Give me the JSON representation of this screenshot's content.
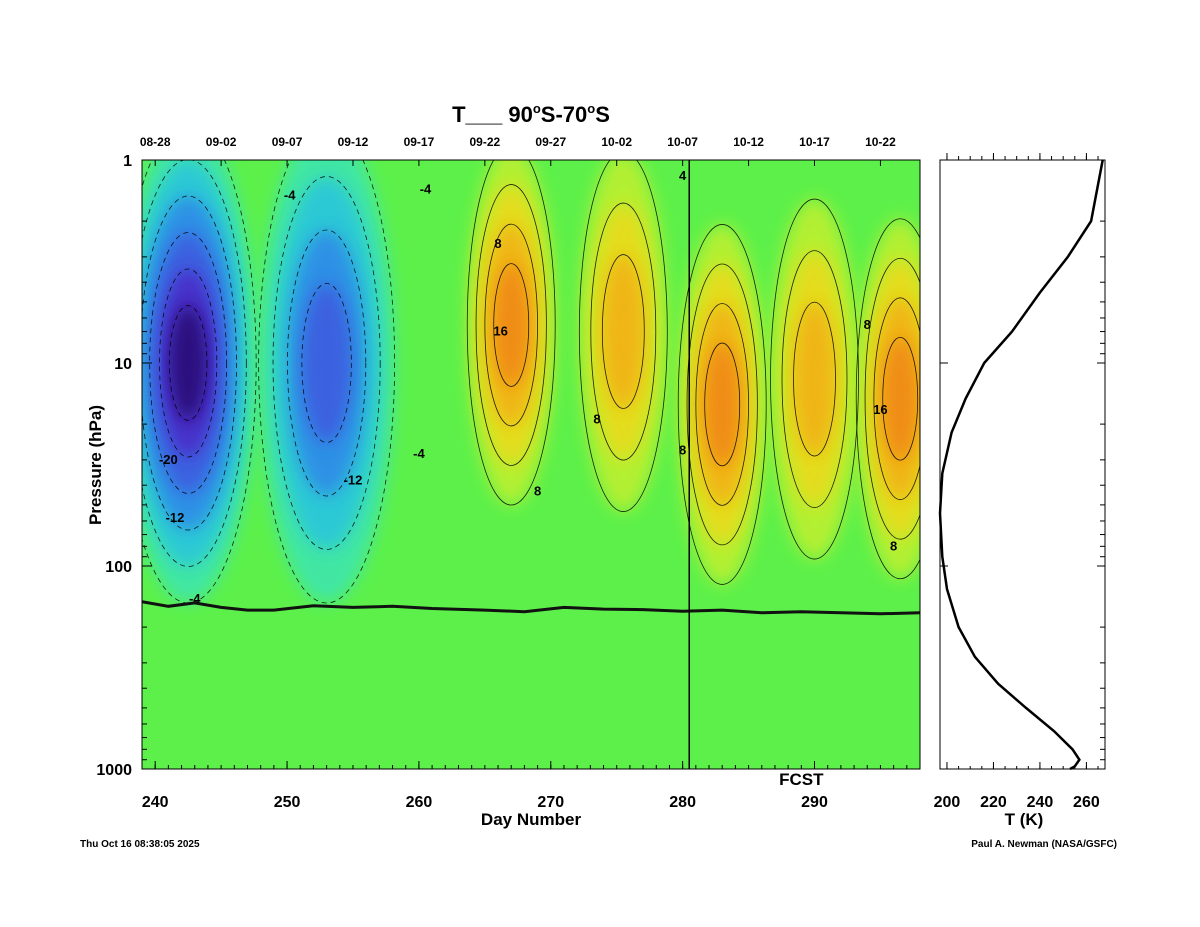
{
  "header": {
    "title_main": "T___ 90",
    "title_deg1": "o",
    "title_mid": "S-70",
    "title_deg2": "o",
    "title_end": "S"
  },
  "footer": {
    "timestamp": "Thu Oct 16 08:38:05 2025",
    "credit": "Paul A. Newman (NASA/GSFC)"
  },
  "colors": {
    "background_field": "#5df04a",
    "cold_extreme": "#2a0a7a",
    "warm_extreme": "#f25a18",
    "tropopause_line": "#111111",
    "forecast_line": "#000000"
  },
  "chart_data": [
    {
      "type": "heatmap",
      "title": "T___ 90°S-70°S",
      "xlabel": "Day Number",
      "ylabel": "Pressure (hPa)",
      "xlim": [
        239,
        298
      ],
      "ylim": [
        1000,
        1
      ],
      "y_scale": "log",
      "x_ticks": [
        "240",
        "250",
        "260",
        "270",
        "280",
        "290"
      ],
      "y_ticks": [
        "1",
        "10",
        "100",
        "1000"
      ],
      "top_date_ticks": {
        "days": [
          240,
          245,
          250,
          255,
          260,
          265,
          270,
          275,
          280,
          285,
          290,
          295
        ],
        "labels": [
          "08-28",
          "09-02",
          "09-07",
          "09-12",
          "09-17",
          "09-22",
          "09-27",
          "10-02",
          "10-07",
          "10-12",
          "10-17",
          "10-22"
        ]
      },
      "forecast_day": 280.5,
      "forecast_label": "FCST",
      "contour_interval": 4,
      "contour_labels": [
        {
          "text": "-4",
          "day": 250.2,
          "p": 1.5
        },
        {
          "text": "-4",
          "day": 260.5,
          "p": 1.4
        },
        {
          "text": "-4",
          "day": 260,
          "p": 28
        },
        {
          "text": "-20",
          "day": 241,
          "p": 30
        },
        {
          "text": "-12",
          "day": 241.5,
          "p": 58
        },
        {
          "text": "-12",
          "day": 255,
          "p": 38
        },
        {
          "text": "-4",
          "day": 243,
          "p": 145
        },
        {
          "text": "8",
          "day": 266,
          "p": 2.6
        },
        {
          "text": "16",
          "day": 266.2,
          "p": 7
        },
        {
          "text": "8",
          "day": 273.5,
          "p": 19
        },
        {
          "text": "8",
          "day": 269,
          "p": 43
        },
        {
          "text": "8",
          "day": 280,
          "p": 27
        },
        {
          "text": "4",
          "day": 280,
          "p": 1.2
        },
        {
          "text": "8",
          "day": 294,
          "p": 6.5
        },
        {
          "text": "16",
          "day": 295,
          "p": 17
        },
        {
          "text": "8",
          "day": 296,
          "p": 80
        }
      ],
      "anomaly_features": [
        {
          "kind": "cold",
          "center_day": 242.5,
          "center_p": 10,
          "peak": -24
        },
        {
          "kind": "cold",
          "center_day": 253,
          "center_p": 10,
          "peak": -18
        },
        {
          "kind": "warm",
          "center_day": 267,
          "center_p": 6.5,
          "peak": 18
        },
        {
          "kind": "warm",
          "center_day": 275.5,
          "center_p": 7,
          "peak": 14
        },
        {
          "kind": "warm",
          "center_day": 283,
          "center_p": 16,
          "peak": 16
        },
        {
          "kind": "warm",
          "center_day": 290,
          "center_p": 12,
          "peak": 14
        },
        {
          "kind": "warm",
          "center_day": 296.5,
          "center_p": 15,
          "peak": 18
        }
      ],
      "tropopause_p": [
        [
          239,
          150
        ],
        [
          241,
          158
        ],
        [
          243,
          152
        ],
        [
          245,
          160
        ],
        [
          247,
          165
        ],
        [
          249,
          165
        ],
        [
          252,
          157
        ],
        [
          255,
          160
        ],
        [
          258,
          158
        ],
        [
          261,
          162
        ],
        [
          265,
          165
        ],
        [
          268,
          168
        ],
        [
          271,
          160
        ],
        [
          274,
          163
        ],
        [
          277,
          164
        ],
        [
          280,
          167
        ],
        [
          283,
          165
        ],
        [
          286,
          170
        ],
        [
          289,
          168
        ],
        [
          292,
          170
        ],
        [
          295,
          172
        ],
        [
          298,
          170
        ]
      ]
    },
    {
      "type": "line",
      "xlabel": "T (K)",
      "xlim": [
        197,
        268
      ],
      "x_ticks": [
        "200",
        "220",
        "240",
        "260"
      ],
      "y_scale": "log",
      "ylim": [
        1000,
        1
      ],
      "x": [
        267,
        262,
        252,
        240,
        228,
        216,
        208,
        202,
        198,
        197,
        198,
        200,
        205,
        212,
        222,
        234,
        246,
        254,
        257,
        255,
        253
      ],
      "y": [
        1,
        2,
        3,
        4.5,
        7,
        10,
        15,
        22,
        35,
        55,
        90,
        130,
        200,
        280,
        380,
        500,
        650,
        800,
        900,
        970,
        1000
      ]
    }
  ]
}
